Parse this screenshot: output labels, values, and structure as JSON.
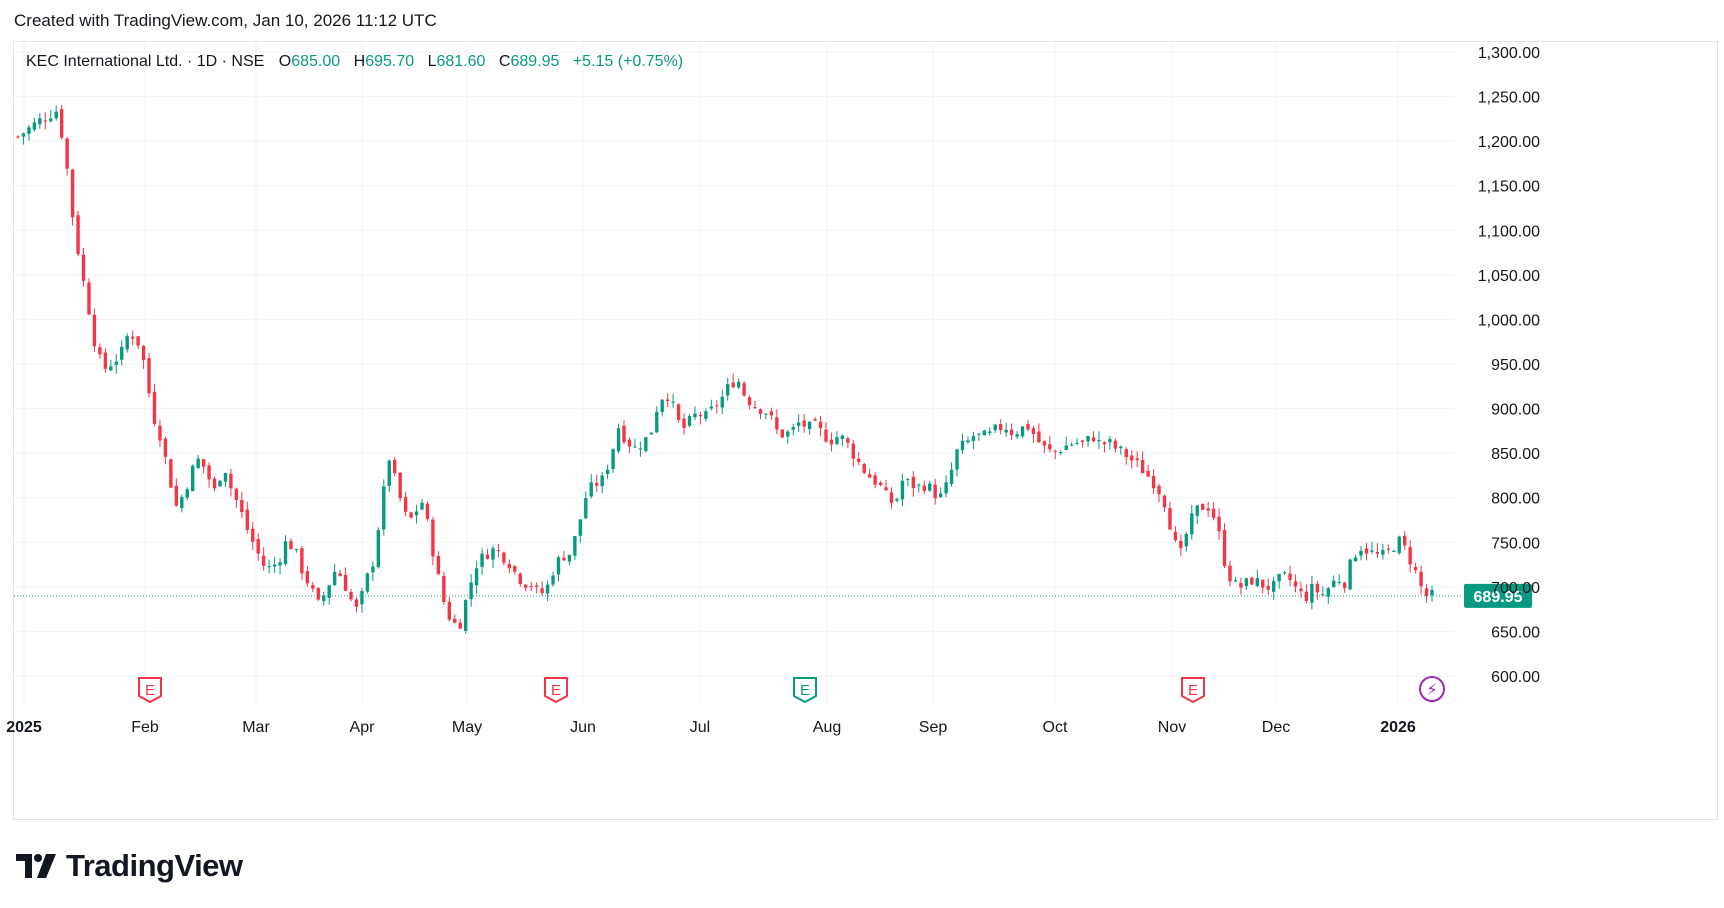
{
  "header": {
    "text": "Created with TradingView.com, Jan 10, 2026 11:12 UTC"
  },
  "legend": {
    "symbol": "KEC International Ltd. · 1D · NSE",
    "open_label": "O",
    "open": "685.00",
    "high_label": "H",
    "high": "695.70",
    "low_label": "L",
    "low": "681.60",
    "close_label": "C",
    "close": "689.95",
    "change": "+5.15 (+0.75%)"
  },
  "brand": {
    "name": "TradingView",
    "logo_icon": "tradingview-logo-icon"
  },
  "colors": {
    "up": "#089981",
    "down": "#f23645",
    "grid": "#f0f3fa",
    "text": "#131722",
    "event": "#f23645",
    "dividend": "#089981",
    "split": "#9c27b0"
  },
  "chart_data": {
    "type": "candlestick",
    "symbol": "KEC International Ltd.",
    "interval": "1D",
    "exchange": "NSE",
    "ylim": [
      580,
      1330
    ],
    "y_ticks": [
      "1,300.00",
      "1,250.00",
      "1,200.00",
      "1,150.00",
      "1,100.00",
      "1,050.00",
      "1,000.00",
      "950.00",
      "900.00",
      "850.00",
      "800.00",
      "750.00",
      "700.00",
      "650.00",
      "600.00"
    ],
    "x_ticks": [
      "2025",
      "Feb",
      "Mar",
      "Apr",
      "May",
      "Jun",
      "Jul",
      "Aug",
      "Sep",
      "Oct",
      "Nov",
      "Dec",
      "2026"
    ],
    "last_price": "689.95",
    "last_price_value": 689.95,
    "grid": true,
    "events": [
      {
        "label": "E",
        "month": "Feb",
        "type": "earnings"
      },
      {
        "label": "E",
        "month": "Jun",
        "type": "earnings"
      },
      {
        "label": "E",
        "month": "Aug",
        "type": "dividend"
      },
      {
        "label": "E",
        "month": "Nov",
        "type": "earnings"
      },
      {
        "label": "⚡",
        "month": "2026",
        "type": "split"
      }
    ],
    "price_path": [
      [
        0,
        1205
      ],
      [
        3,
        1225
      ],
      [
        5,
        1235
      ],
      [
        6,
        1185
      ],
      [
        7,
        1110
      ],
      [
        8,
        1055
      ],
      [
        9,
        1010
      ],
      [
        10,
        960
      ],
      [
        11,
        945
      ],
      [
        13,
        960
      ],
      [
        14,
        985
      ],
      [
        15,
        980
      ],
      [
        16,
        950
      ],
      [
        17,
        895
      ],
      [
        18,
        870
      ],
      [
        19,
        830
      ],
      [
        20,
        790
      ],
      [
        21,
        805
      ],
      [
        22,
        830
      ],
      [
        23,
        845
      ],
      [
        24,
        825
      ],
      [
        25,
        805
      ],
      [
        26,
        840
      ],
      [
        27,
        810
      ],
      [
        28,
        790
      ],
      [
        29,
        765
      ],
      [
        30,
        745
      ],
      [
        31,
        725
      ],
      [
        32,
        720
      ],
      [
        33,
        730
      ],
      [
        34,
        752
      ],
      [
        35,
        742
      ],
      [
        36,
        718
      ],
      [
        37,
        700
      ],
      [
        38,
        680
      ],
      [
        39,
        695
      ],
      [
        40,
        718
      ],
      [
        41,
        712
      ],
      [
        42,
        688
      ],
      [
        43,
        672
      ],
      [
        44,
        705
      ],
      [
        45,
        730
      ],
      [
        46,
        790
      ],
      [
        47,
        845
      ],
      [
        48,
        810
      ],
      [
        49,
        780
      ],
      [
        50,
        775
      ],
      [
        51,
        800
      ],
      [
        52,
        765
      ],
      [
        53,
        718
      ],
      [
        54,
        680
      ],
      [
        55,
        658
      ],
      [
        56,
        660
      ],
      [
        57,
        695
      ],
      [
        58,
        725
      ],
      [
        59,
        735
      ],
      [
        60,
        742
      ],
      [
        61,
        738
      ],
      [
        62,
        730
      ],
      [
        63,
        715
      ],
      [
        64,
        705
      ],
      [
        65,
        703
      ],
      [
        66,
        690
      ],
      [
        67,
        700
      ],
      [
        68,
        725
      ],
      [
        69,
        735
      ],
      [
        70,
        738
      ],
      [
        71,
        770
      ],
      [
        72,
        805
      ],
      [
        73,
        815
      ],
      [
        74,
        820
      ],
      [
        75,
        845
      ],
      [
        76,
        880
      ],
      [
        77,
        865
      ],
      [
        78,
        855
      ],
      [
        79,
        862
      ],
      [
        80,
        870
      ],
      [
        81,
        905
      ],
      [
        82,
        920
      ],
      [
        83,
        900
      ],
      [
        84,
        875
      ],
      [
        85,
        885
      ],
      [
        86,
        895
      ],
      [
        87,
        890
      ],
      [
        88,
        900
      ],
      [
        89,
        910
      ],
      [
        90,
        925
      ],
      [
        91,
        935
      ],
      [
        92,
        915
      ],
      [
        93,
        905
      ],
      [
        94,
        900
      ],
      [
        95,
        895
      ],
      [
        96,
        875
      ],
      [
        97,
        870
      ],
      [
        98,
        875
      ],
      [
        99,
        885
      ],
      [
        100,
        878
      ],
      [
        101,
        880
      ],
      [
        102,
        870
      ],
      [
        103,
        865
      ],
      [
        104,
        870
      ],
      [
        105,
        860
      ],
      [
        106,
        845
      ],
      [
        107,
        832
      ],
      [
        108,
        822
      ],
      [
        109,
        815
      ],
      [
        110,
        800
      ],
      [
        111,
        792
      ],
      [
        112,
        820
      ],
      [
        113,
        815
      ],
      [
        114,
        812
      ],
      [
        115,
        815
      ],
      [
        116,
        805
      ],
      [
        117,
        800
      ],
      [
        118,
        825
      ],
      [
        119,
        855
      ],
      [
        120,
        860
      ],
      [
        121,
        870
      ],
      [
        122,
        868
      ],
      [
        123,
        870
      ],
      [
        124,
        878
      ],
      [
        125,
        880
      ],
      [
        126,
        872
      ],
      [
        127,
        878
      ],
      [
        128,
        880
      ],
      [
        129,
        865
      ],
      [
        130,
        855
      ],
      [
        131,
        850
      ],
      [
        132,
        855
      ],
      [
        133,
        860
      ],
      [
        134,
        862
      ],
      [
        135,
        860
      ],
      [
        136,
        870
      ],
      [
        137,
        860
      ],
      [
        138,
        862
      ],
      [
        139,
        855
      ],
      [
        140,
        850
      ],
      [
        141,
        842
      ],
      [
        142,
        835
      ],
      [
        143,
        825
      ],
      [
        144,
        815
      ],
      [
        145,
        800
      ],
      [
        146,
        765
      ],
      [
        147,
        730
      ],
      [
        148,
        762
      ],
      [
        149,
        785
      ],
      [
        150,
        790
      ],
      [
        151,
        790
      ],
      [
        152,
        760
      ],
      [
        153,
        718
      ],
      [
        154,
        702
      ],
      [
        155,
        700
      ],
      [
        156,
        708
      ],
      [
        157,
        705
      ],
      [
        158,
        700
      ],
      [
        159,
        700
      ],
      [
        160,
        712
      ],
      [
        161,
        708
      ],
      [
        162,
        695
      ],
      [
        163,
        688
      ],
      [
        164,
        700
      ],
      [
        165,
        690
      ],
      [
        166,
        700
      ],
      [
        167,
        710
      ],
      [
        168,
        705
      ],
      [
        169,
        735
      ],
      [
        170,
        745
      ],
      [
        171,
        740
      ],
      [
        172,
        735
      ],
      [
        173,
        735
      ],
      [
        174,
        745
      ],
      [
        175,
        752
      ],
      [
        176,
        735
      ],
      [
        177,
        715
      ],
      [
        178,
        690
      ],
      [
        179,
        690
      ]
    ]
  }
}
